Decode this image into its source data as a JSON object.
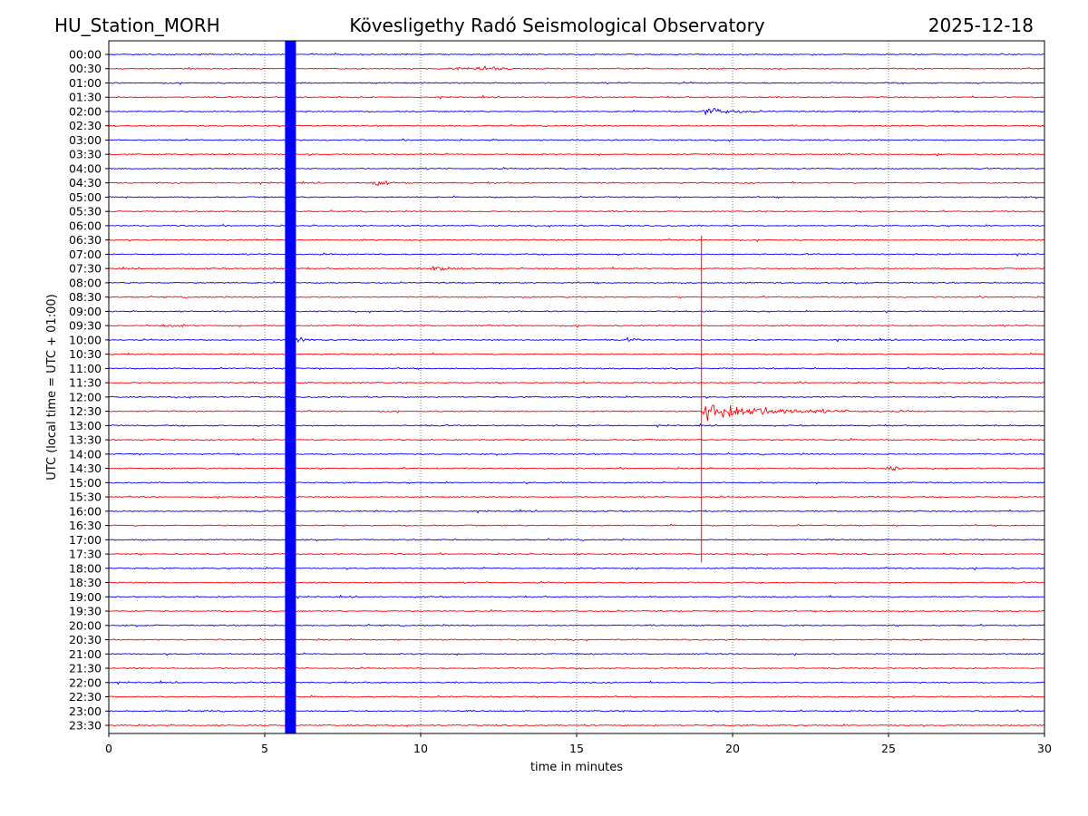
{
  "header": {
    "station": "HU_Station_MORH",
    "observatory": "Kövesligethy Radó Seismological Observatory",
    "date": "2025-12-18"
  },
  "chart_data": {
    "type": "line",
    "title": "Kövesligethy Radó Seismological Observatory",
    "xlabel": "time in minutes",
    "ylabel": "UTC (local time = UTC + 01:00)",
    "xlim": [
      0,
      30
    ],
    "x_ticks": [
      "0",
      "5",
      "10",
      "15",
      "20",
      "25",
      "30"
    ],
    "x_tick_values": [
      0,
      5,
      10,
      15,
      20,
      25,
      30
    ],
    "grid": "vertical dotted at x ticks",
    "series_colors": [
      "#0000ff",
      "#ff0000"
    ],
    "y_ticks": [
      "00:00",
      "00:30",
      "01:00",
      "01:30",
      "02:00",
      "02:30",
      "03:00",
      "03:30",
      "04:00",
      "04:30",
      "05:00",
      "05:30",
      "06:00",
      "06:30",
      "07:00",
      "07:30",
      "08:00",
      "08:30",
      "09:00",
      "09:30",
      "10:00",
      "10:30",
      "11:00",
      "11:30",
      "12:00",
      "12:30",
      "13:00",
      "13:30",
      "14:00",
      "14:30",
      "15:00",
      "15:30",
      "16:00",
      "16:30",
      "17:00",
      "17:30",
      "18:00",
      "18:30",
      "19:00",
      "19:30",
      "20:00",
      "20:30",
      "21:00",
      "21:30",
      "22:00",
      "22:30",
      "23:00",
      "23:30"
    ],
    "saturated_band": {
      "start_min": 5.65,
      "end_min": 6.0,
      "color": "#0000ff",
      "note_rows": "all"
    },
    "events": [
      {
        "row": "00:30",
        "start_min": 10.7,
        "end_min": 13.0,
        "amplitude": 0.35,
        "decay": "spindle"
      },
      {
        "row": "02:00",
        "start_min": 19.0,
        "end_min": 21.5,
        "amplitude": 1.1,
        "decay": "exp"
      },
      {
        "row": "02:00",
        "start_min": 22.6,
        "end_min": 22.8,
        "amplitude": 0.6,
        "decay": "exp"
      },
      {
        "row": "04:30",
        "start_min": 8.4,
        "end_min": 9.0,
        "amplitude": 0.6,
        "decay": "spindle"
      },
      {
        "row": "07:30",
        "start_min": 10.3,
        "end_min": 12.5,
        "amplitude": 0.6,
        "decay": "exp"
      },
      {
        "row": "09:30",
        "start_min": 1.2,
        "end_min": 2.6,
        "amplitude": 0.18,
        "decay": "spindle"
      },
      {
        "row": "10:00",
        "start_min": 3.2,
        "end_min": 3.5,
        "amplitude": 0.55,
        "decay": "exp"
      },
      {
        "row": "10:00",
        "start_min": 6.0,
        "end_min": 7.3,
        "amplitude": 0.55,
        "decay": "exp"
      },
      {
        "row": "10:00",
        "start_min": 8.6,
        "end_min": 8.7,
        "amplitude": 0.5,
        "decay": "exp"
      },
      {
        "row": "10:00",
        "start_min": 16.6,
        "end_min": 17.4,
        "amplitude": 0.55,
        "decay": "exp"
      },
      {
        "row": "12:30",
        "start_min": 19.0,
        "end_min": 26.0,
        "amplitude": 2.3,
        "decay": "exp"
      },
      {
        "row": "14:30",
        "start_min": 24.8,
        "end_min": 25.5,
        "amplitude": 0.35,
        "decay": "spindle"
      }
    ],
    "spike": {
      "x_min": 19.0,
      "from_row": "06:30",
      "to_row": "17:30",
      "color": "#ff0000"
    }
  }
}
